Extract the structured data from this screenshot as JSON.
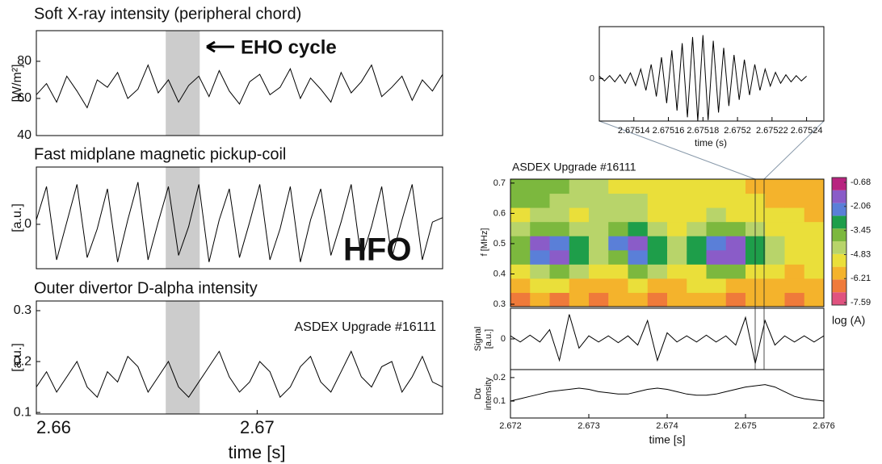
{
  "chart_data": [
    {
      "type": "line",
      "title": "Soft X-ray intensity (peripheral chord)",
      "ylabel": [
        "[W/m²]"
      ],
      "annotation": "EHO cycle",
      "color": "#000000",
      "shaded_span": [
        2.66586,
        2.6674
      ],
      "xlim": [
        2.66,
        2.6784
      ],
      "ylim": [
        40,
        96.5
      ],
      "yticks": [
        40,
        60,
        80
      ],
      "x": [
        2.66,
        2.66046,
        2.66092,
        2.66138,
        2.66184,
        2.6623,
        2.66276,
        2.66322,
        2.66368,
        2.66414,
        2.6646,
        2.66506,
        2.66552,
        2.66598,
        2.66644,
        2.6669,
        2.66736,
        2.66782,
        2.66828,
        2.66874,
        2.6692,
        2.66966,
        2.67012,
        2.67058,
        2.67104,
        2.6715,
        2.67196,
        2.67242,
        2.67288,
        2.67334,
        2.6738,
        2.67426,
        2.67472,
        2.67518,
        2.67564,
        2.6761,
        2.67656,
        2.67702,
        2.67748,
        2.67794,
        2.6784
      ],
      "values": [
        62,
        68,
        58,
        72,
        64,
        55,
        70,
        66,
        74,
        60,
        65,
        78,
        63,
        70,
        58,
        67,
        72,
        61,
        75,
        64,
        57,
        69,
        73,
        62,
        66,
        76,
        60,
        71,
        65,
        58,
        74,
        63,
        69,
        78,
        61,
        66,
        72,
        59,
        70,
        64,
        73
      ]
    },
    {
      "type": "line",
      "title": "Fast midplane magnetic pickup-coil",
      "ylabel": [
        "[a.u.]"
      ],
      "annotation": "HFO",
      "color": "#000000",
      "shaded_span": [
        2.66586,
        2.6674
      ],
      "xlim": [
        2.66,
        2.6784
      ],
      "ylim": [
        -1,
        1.29
      ],
      "yticks": [
        0
      ],
      "x": [
        2.66,
        2.66046,
        2.66092,
        2.66138,
        2.66184,
        2.6623,
        2.66276,
        2.66322,
        2.66368,
        2.66414,
        2.6646,
        2.66506,
        2.66552,
        2.66598,
        2.66644,
        2.6669,
        2.66736,
        2.66782,
        2.66828,
        2.66874,
        2.6692,
        2.66966,
        2.67012,
        2.67058,
        2.67104,
        2.6715,
        2.67196,
        2.67242,
        2.67288,
        2.67334,
        2.6738,
        2.67426,
        2.67472,
        2.67518,
        2.67564,
        2.6761,
        2.67656,
        2.67702,
        2.67748,
        2.67794,
        2.6784
      ],
      "values": [
        0.1,
        0.85,
        -0.8,
        0.05,
        0.9,
        -0.75,
        -0.1,
        0.8,
        -0.85,
        0.1,
        0.95,
        -0.8,
        0.05,
        0.85,
        -0.7,
        -0.05,
        0.9,
        -0.85,
        0.1,
        0.8,
        -0.75,
        0.05,
        0.9,
        -0.8,
        -0.1,
        0.85,
        -0.85,
        0.1,
        0.8,
        -0.7,
        0.05,
        0.9,
        -0.8,
        -0.05,
        0.85,
        -0.75,
        0.1,
        0.9,
        -0.8,
        0.05,
        0.15
      ]
    },
    {
      "type": "line",
      "title": "Outer divertor D-alpha intensity",
      "ylabel": [
        "[a.u.]"
      ],
      "annotation": "ASDEX Upgrade #16111",
      "color": "#000000",
      "shaded_span": [
        2.66586,
        2.6674
      ],
      "xlim": [
        2.66,
        2.6784
      ],
      "ylim": [
        0.097,
        0.319
      ],
      "yticks": [
        0.1,
        0.2,
        0.3
      ],
      "xticks": [
        2.66,
        2.67
      ],
      "xlabel": "time [s]",
      "x": [
        2.66,
        2.66046,
        2.66092,
        2.66138,
        2.66184,
        2.6623,
        2.66276,
        2.66322,
        2.66368,
        2.66414,
        2.6646,
        2.66506,
        2.66552,
        2.66598,
        2.66644,
        2.6669,
        2.66736,
        2.66782,
        2.66828,
        2.66874,
        2.6692,
        2.66966,
        2.67012,
        2.67058,
        2.67104,
        2.6715,
        2.67196,
        2.67242,
        2.67288,
        2.67334,
        2.6738,
        2.67426,
        2.67472,
        2.67518,
        2.67564,
        2.6761,
        2.67656,
        2.67702,
        2.67748,
        2.67794,
        2.6784
      ],
      "values": [
        0.15,
        0.18,
        0.14,
        0.17,
        0.2,
        0.15,
        0.13,
        0.18,
        0.16,
        0.21,
        0.19,
        0.14,
        0.17,
        0.2,
        0.15,
        0.13,
        0.16,
        0.19,
        0.22,
        0.17,
        0.14,
        0.16,
        0.2,
        0.18,
        0.13,
        0.15,
        0.19,
        0.21,
        0.16,
        0.14,
        0.18,
        0.22,
        0.17,
        0.15,
        0.19,
        0.2,
        0.14,
        0.17,
        0.21,
        0.16,
        0.15
      ]
    },
    {
      "type": "line",
      "xlabel": "time (s)",
      "color": "#000000",
      "xlim": [
        2.67512,
        2.67525
      ],
      "ylim": [
        -0.9,
        1.1
      ],
      "yticks": [
        0
      ],
      "xticks": [
        2.67514,
        2.67516,
        2.67518,
        2.6752,
        2.67522,
        2.67524
      ],
      "x": [
        2.67512,
        2.675123,
        2.675126,
        2.675129,
        2.675132,
        2.675135,
        2.675138,
        2.675141,
        2.675144,
        2.675147,
        2.67515,
        2.675153,
        2.675156,
        2.675159,
        2.675162,
        2.675165,
        2.675168,
        2.675171,
        2.675174,
        2.675177,
        2.67518,
        2.675183,
        2.675186,
        2.675189,
        2.675192,
        2.675195,
        2.675198,
        2.675201,
        2.675204,
        2.675207,
        2.67521,
        2.675213,
        2.675216,
        2.675219,
        2.675222,
        2.675225,
        2.675228,
        2.675231,
        2.675234,
        2.675237,
        2.67524
      ],
      "values": [
        0.05,
        -0.05,
        0.06,
        -0.07,
        0.08,
        -0.1,
        0.12,
        -0.15,
        0.2,
        -0.25,
        0.3,
        -0.38,
        0.45,
        -0.52,
        0.6,
        -0.68,
        0.75,
        -0.82,
        0.88,
        -0.9,
        0.92,
        -0.88,
        0.8,
        -0.72,
        0.65,
        -0.58,
        0.5,
        -0.45,
        0.4,
        -0.35,
        0.3,
        -0.25,
        0.2,
        -0.16,
        0.13,
        -0.1,
        0.08,
        -0.07,
        0.06,
        -0.05,
        0.05
      ]
    },
    {
      "type": "heatmap",
      "title": "ASDEX Upgrade #16111",
      "ylabel": [
        "f [MHz]"
      ],
      "xlim": [
        2.672,
        2.676
      ],
      "ylim": [
        0.292,
        0.713
      ],
      "yticks": [
        0.3,
        0.4,
        0.5,
        0.6,
        0.7
      ],
      "z": [
        [
          -6.5,
          -6.0,
          -6.3,
          -5.8,
          -6.6,
          -6.1,
          -5.9,
          -6.4,
          -6.0,
          -5.7,
          -6.2,
          -6.5,
          -5.9,
          -6.1,
          -6.3,
          -6.0
        ],
        [
          -6.0,
          -5.5,
          -5.2,
          -5.6,
          -6.0,
          -5.8,
          -5.4,
          -5.9,
          -5.6,
          -5.3,
          -5.5,
          -5.8,
          -5.7,
          -5.9,
          -6.1,
          -5.8
        ],
        [
          -5.0,
          -4.2,
          -3.6,
          -4.5,
          -5.3,
          -4.9,
          -3.8,
          -4.6,
          -5.2,
          -5.0,
          -3.5,
          -3.9,
          -4.8,
          -5.4,
          -5.6,
          -5.3
        ],
        [
          -4.0,
          -2.5,
          -1.4,
          -2.8,
          -4.4,
          -3.6,
          -2.0,
          -2.6,
          -4.5,
          -3.3,
          -1.8,
          -1.2,
          -2.9,
          -4.6,
          -5.0,
          -4.8
        ],
        [
          -3.6,
          -1.8,
          -2.2,
          -3.3,
          -4.2,
          -2.4,
          -1.5,
          -3.0,
          -4.6,
          -3.0,
          -2.2,
          -1.7,
          -2.7,
          -4.4,
          -4.9,
          -5.1
        ],
        [
          -4.3,
          -3.4,
          -3.7,
          -4.5,
          -4.6,
          -3.5,
          -3.2,
          -4.1,
          -4.9,
          -4.1,
          -3.4,
          -3.6,
          -4.3,
          -5.0,
          -5.2,
          -5.3
        ],
        [
          -4.8,
          -4.4,
          -4.6,
          -4.9,
          -4.7,
          -4.6,
          -4.5,
          -4.8,
          -5.3,
          -4.9,
          -4.6,
          -4.8,
          -5.0,
          -5.4,
          -5.5,
          -5.6
        ],
        [
          -3.9,
          -3.6,
          -4.1,
          -4.7,
          -4.5,
          -4.3,
          -4.6,
          -5.0,
          -5.4,
          -5.1,
          -4.9,
          -5.2,
          -5.3,
          -5.6,
          -5.8,
          -5.7
        ],
        [
          -3.5,
          -3.7,
          -4.0,
          -4.4,
          -4.6,
          -4.8,
          -5.0,
          -5.2,
          -5.5,
          -5.3,
          -5.1,
          -5.4,
          -5.6,
          -5.7,
          -5.9,
          -5.8
        ]
      ],
      "clim": [
        -7.73,
        -0.4
      ],
      "colors": [
        "#e0527f",
        "#ef7a3a",
        "#f4b32c",
        "#eadf3a",
        "#b8d46a",
        "#7cb83e",
        "#1e9e4a",
        "#5a7fd8",
        "#8a5cc8",
        "#b8237f"
      ],
      "colorbar_ticks": [
        -0.68,
        -2.06,
        -3.45,
        -4.83,
        -6.21,
        -7.59
      ],
      "colorbar_label": "log (A)"
    },
    {
      "type": "line",
      "ylabel": [
        "Signal",
        "[a.u.]"
      ],
      "color": "#000000",
      "xlim": [
        2.672,
        2.676
      ],
      "ylim": [
        -1,
        1
      ],
      "yticks": [
        0
      ],
      "x": [
        2.672,
        2.672125,
        2.67225,
        2.672375,
        2.6725,
        2.672625,
        2.67275,
        2.672875,
        2.673,
        2.673125,
        2.67325,
        2.673375,
        2.6735,
        2.673625,
        2.67375,
        2.673875,
        2.674,
        2.674125,
        2.67425,
        2.674375,
        2.6745,
        2.674625,
        2.67475,
        2.674875,
        2.675,
        2.675125,
        2.67525,
        2.675375,
        2.6755,
        2.675625,
        2.67575,
        2.675875,
        2.676
      ],
      "values": [
        0.1,
        -0.1,
        0.12,
        -0.1,
        0.3,
        -0.7,
        0.8,
        -0.3,
        0.1,
        -0.1,
        0.1,
        -0.12,
        0.1,
        -0.2,
        0.6,
        -0.7,
        0.2,
        -0.1,
        0.1,
        -0.1,
        0.12,
        -0.1,
        0.1,
        -0.2,
        0.7,
        -0.8,
        0.6,
        -0.2,
        0.1,
        -0.1,
        0.1,
        -0.1,
        0.1
      ]
    },
    {
      "type": "line",
      "ylabel": [
        "Dα",
        "intensity"
      ],
      "xlabel": "time [s]",
      "color": "#000000",
      "xlim": [
        2.672,
        2.676
      ],
      "ylim": [
        0.028,
        0.234
      ],
      "yticks": [
        0.1,
        0.2
      ],
      "xticks": [
        2.672,
        2.673,
        2.674,
        2.675,
        2.676
      ],
      "x": [
        2.672,
        2.672125,
        2.67225,
        2.672375,
        2.6725,
        2.672625,
        2.67275,
        2.672875,
        2.673,
        2.673125,
        2.67325,
        2.673375,
        2.6735,
        2.673625,
        2.67375,
        2.673875,
        2.674,
        2.674125,
        2.67425,
        2.674375,
        2.6745,
        2.674625,
        2.67475,
        2.674875,
        2.675,
        2.675125,
        2.67525,
        2.675375,
        2.6755,
        2.675625,
        2.67575,
        2.675875,
        2.676
      ],
      "values": [
        0.1,
        0.11,
        0.12,
        0.13,
        0.14,
        0.145,
        0.15,
        0.155,
        0.15,
        0.14,
        0.135,
        0.13,
        0.13,
        0.14,
        0.15,
        0.155,
        0.15,
        0.14,
        0.13,
        0.125,
        0.125,
        0.13,
        0.14,
        0.15,
        0.16,
        0.165,
        0.17,
        0.16,
        0.14,
        0.12,
        0.11,
        0.105,
        0.1
      ]
    }
  ]
}
